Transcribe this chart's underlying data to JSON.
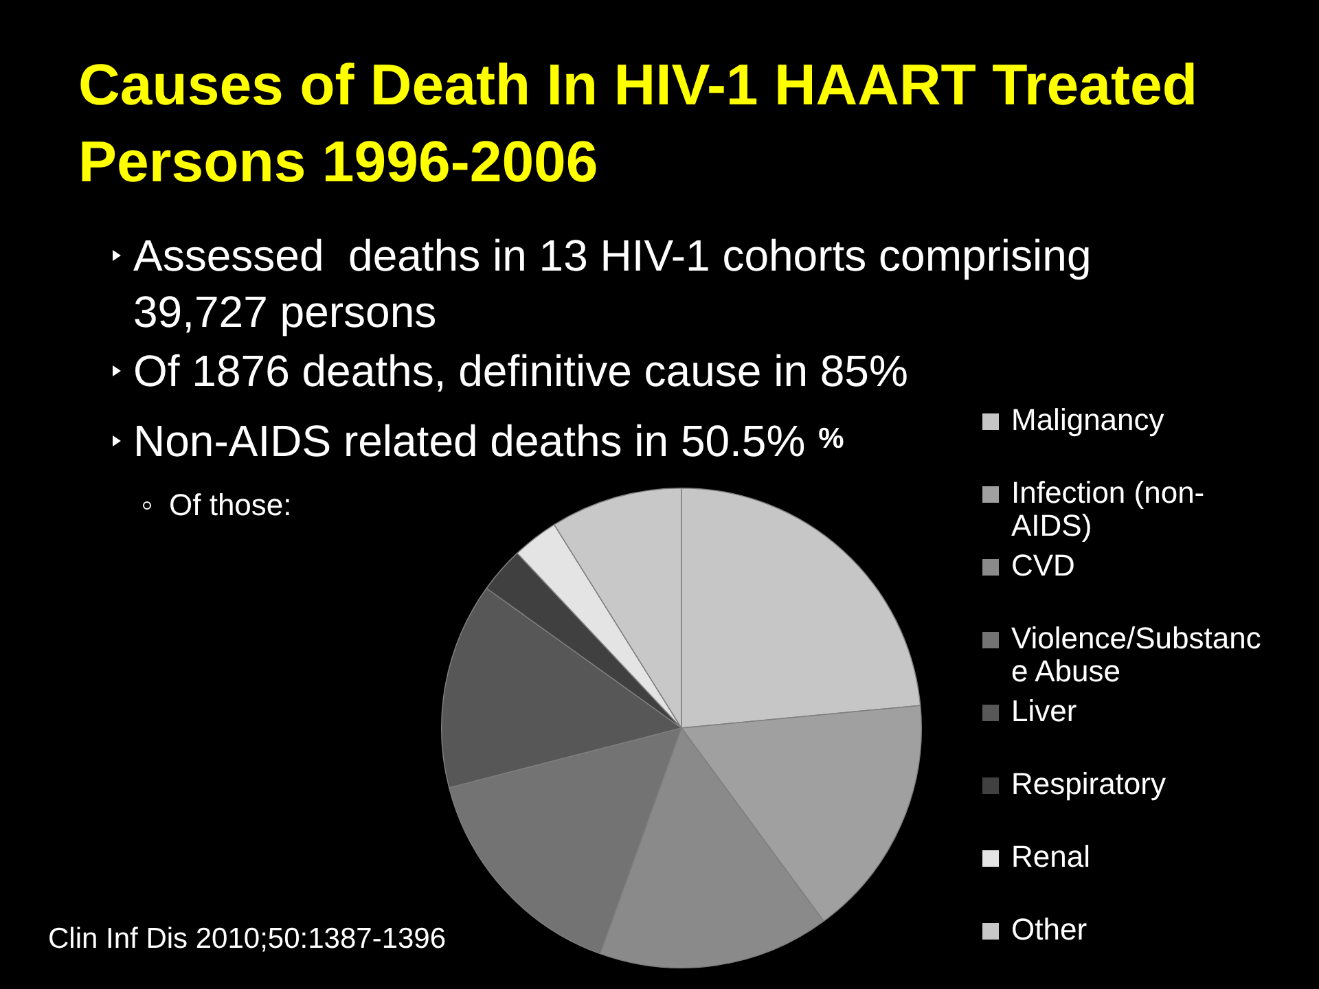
{
  "chart_data": {
    "type": "pie",
    "title": "Causes of Death In HIV-1 HAART Treated Persons 1996-2006",
    "subtitle": "%",
    "categories": [
      "Malignancy",
      "Infection (non-AIDS)",
      "CVD",
      "Violence/Substance Abuse",
      "Liver",
      "Respiratory",
      "Renal",
      "Other"
    ],
    "values": [
      23.5,
      16.4,
      15.6,
      15.5,
      13.9,
      3.1,
      3.1,
      8.9
    ],
    "colors": [
      "#c6c6c6",
      "#a0a0a0",
      "#8a8a8a",
      "#737373",
      "#575757",
      "#404040",
      "#e4e4e4",
      "#c8c8c8"
    ],
    "legend": "right",
    "annotations": [
      "Assessed  deaths in 13 HIV-1 cohorts comprising 39,727 persons",
      "Of 1876 deaths, definitive cause in 85%",
      "Non-AIDS related deaths in 50.5%",
      "Of those:",
      "Clin Inf Dis 2010;50:1387-1396"
    ]
  }
}
